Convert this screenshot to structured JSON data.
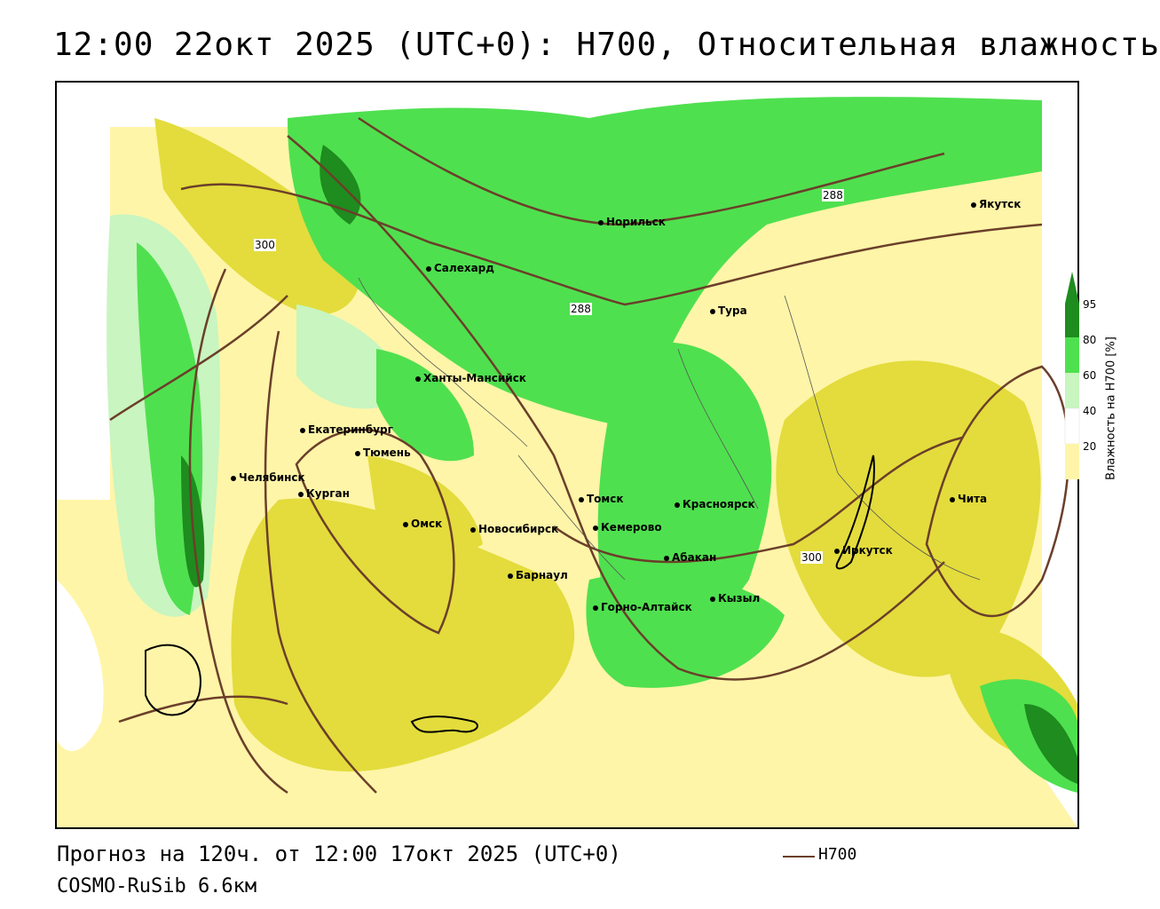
{
  "title": "12:00 22окт 2025 (UTC+0): H700, Относительная влажность",
  "footer": {
    "forecast": "Прогноз на 120ч. от 12:00 17окт 2025 (UTC+0)",
    "model": "COSMO-RuSib 6.6км",
    "legend_label": "H700"
  },
  "colorbar": {
    "title": "Влажность на H700 [%]",
    "ticks": [
      "95",
      "80",
      "60",
      "40",
      "20"
    ],
    "colors": [
      "#1e8c1e",
      "#4fe04f",
      "#c8f5c0",
      "#ffffff",
      "#fff5a8",
      "#e3dc3c"
    ]
  },
  "contour_labels": [
    "300",
    "288",
    "288",
    "300"
  ],
  "cities": [
    {
      "name": "Норильск"
    },
    {
      "name": "Якутск"
    },
    {
      "name": "Салехард"
    },
    {
      "name": "Тура"
    },
    {
      "name": "Ханты-Мансийск"
    },
    {
      "name": "Екатеринбург"
    },
    {
      "name": "Тюмень"
    },
    {
      "name": "Челябинск"
    },
    {
      "name": "Курган"
    },
    {
      "name": "Омск"
    },
    {
      "name": "Новосибирск"
    },
    {
      "name": "Томск"
    },
    {
      "name": "Кемерово"
    },
    {
      "name": "Красноярск"
    },
    {
      "name": "Барнаул"
    },
    {
      "name": "Абакан"
    },
    {
      "name": "Кызыл"
    },
    {
      "name": "Горно-Алтайск"
    },
    {
      "name": "Иркутск"
    },
    {
      "name": "Чита"
    }
  ]
}
